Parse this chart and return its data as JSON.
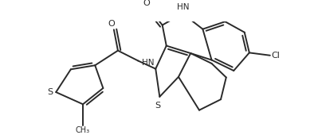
{
  "background_color": "#ffffff",
  "line_color": "#2a2a2a",
  "line_width": 1.4,
  "font_size": 7.5,
  "figsize": [
    4.04,
    1.7
  ],
  "dpi": 100,
  "xlim": [
    0,
    10.0
  ],
  "ylim": [
    0,
    4.2
  ]
}
